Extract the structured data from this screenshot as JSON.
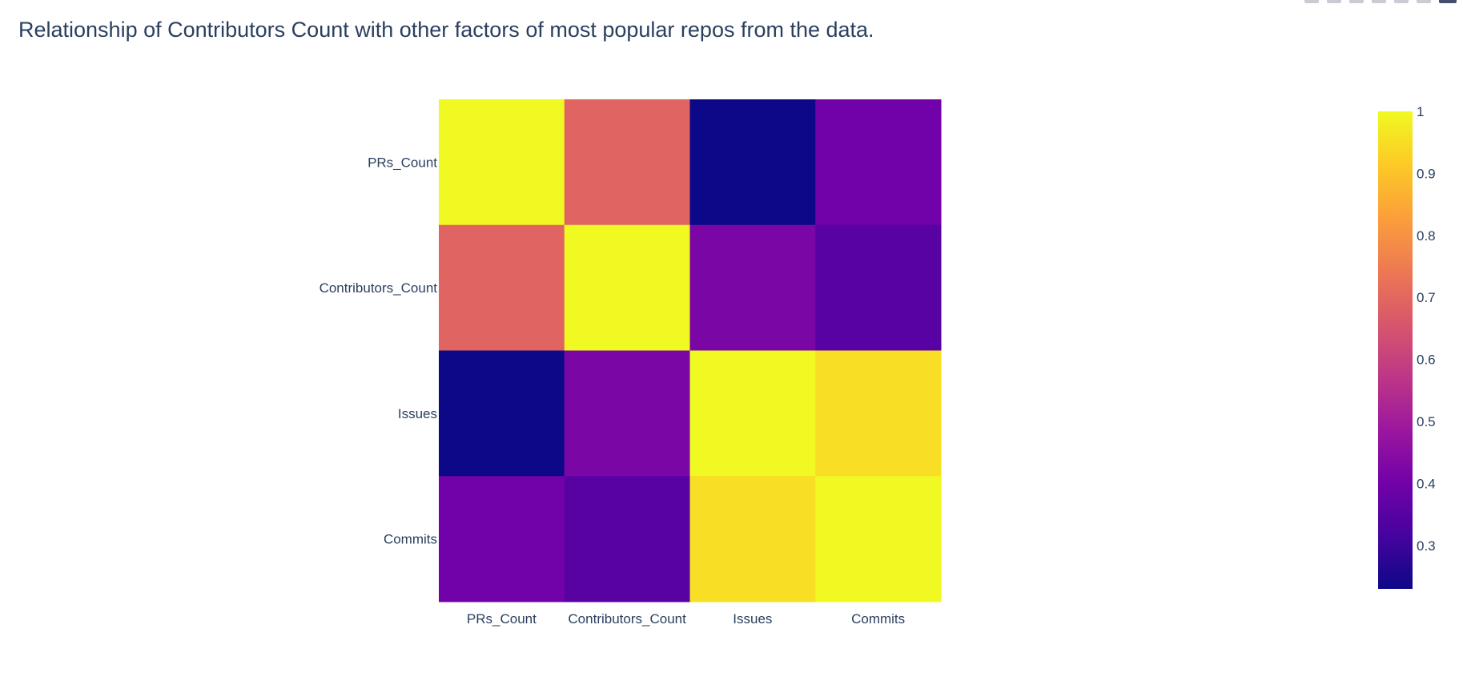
{
  "modebar": {
    "buttons": [
      "zoom-icon",
      "pan-icon",
      "box-select-icon",
      "lasso-icon",
      "zoom-in-icon",
      "zoom-out-icon",
      "autoscale-icon",
      "reset-axes-icon",
      "plotly-logo-icon"
    ]
  },
  "chart_data": {
    "type": "heatmap",
    "title": "Relationship of Contributors Count with other factors of most popular repos from the data.",
    "x": [
      "PRs_Count",
      "Contributors_Count",
      "Issues",
      "Commits"
    ],
    "y": [
      "PRs_Count",
      "Contributors_Count",
      "Issues",
      "Commits"
    ],
    "z": [
      [
        1.0,
        0.69,
        0.23,
        0.4
      ],
      [
        0.69,
        1.0,
        0.42,
        0.35
      ],
      [
        0.23,
        0.42,
        1.0,
        0.95
      ],
      [
        0.4,
        0.35,
        0.95,
        1.0
      ]
    ],
    "colorscale": "plasma",
    "colors": [
      "#0d0887",
      "#46039f",
      "#7201a8",
      "#9c179e",
      "#bd3786",
      "#d8576b",
      "#ed7953",
      "#fb9f3a",
      "#fdca26",
      "#f0f921"
    ],
    "zmin": 0.23,
    "zmax": 1.0,
    "colorbar": {
      "ticks": [
        0.3,
        0.4,
        0.5,
        0.6,
        0.7,
        0.8,
        0.9,
        1
      ],
      "tick_labels": [
        "0.3",
        "0.4",
        "0.5",
        "0.6",
        "0.7",
        "0.8",
        "0.9",
        "1"
      ]
    }
  }
}
